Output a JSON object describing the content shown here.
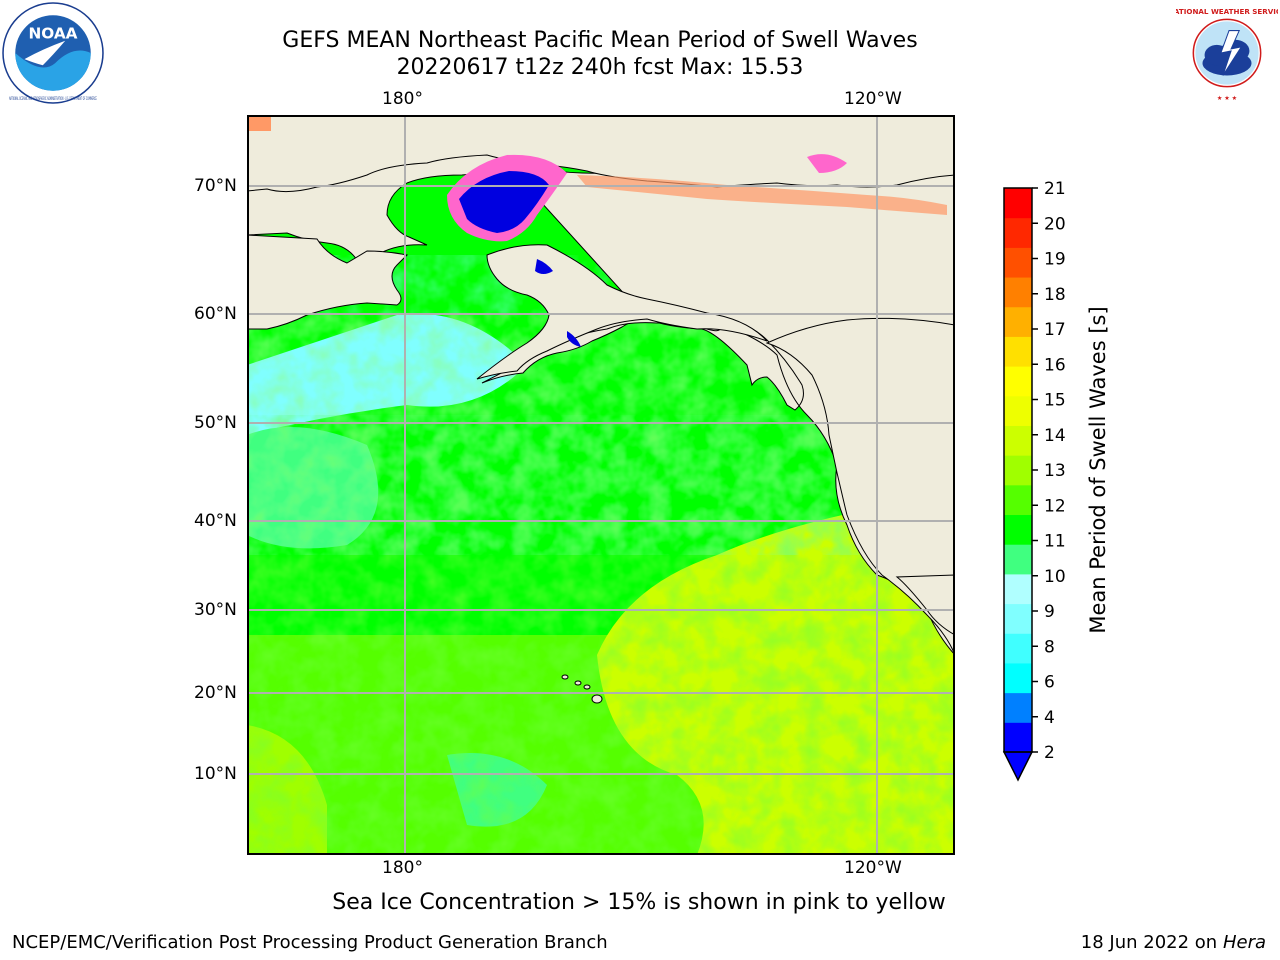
{
  "header": {
    "title_line1": "GEFS MEAN Northeast Pacific Mean Period of Swell Waves",
    "title_line2": "20220617 t12z 240h fcst   Max: 15.53"
  },
  "logos": {
    "left": {
      "name": "NOAA",
      "text": "NOAA",
      "ring_text": "NATIONAL OCEANIC AND ATMOSPHERIC ADMINISTRATION · U.S. DEPARTMENT OF COMMERCE"
    },
    "right": {
      "name": "National Weather Service",
      "ring_text": "NATIONAL WEATHER SERVICE"
    }
  },
  "map": {
    "lon_labels_top": [
      "180°",
      "120°W"
    ],
    "lon_labels_bottom": [
      "180°",
      "120°W"
    ],
    "lat_labels": [
      "70°N",
      "60°N",
      "50°N",
      "40°N",
      "30°N",
      "20°N",
      "10°N"
    ],
    "land_color": "#efecdc",
    "grid_color": "#b0b0b0"
  },
  "colorbar": {
    "title": "Mean Period of Swell Waves [s]",
    "ticks": [
      "21",
      "20",
      "19",
      "18",
      "17",
      "16",
      "15",
      "14",
      "13",
      "12",
      "11",
      "10",
      "9",
      "8",
      "6",
      "4",
      "2"
    ],
    "colors_bottom_to_top": [
      "#0000ff",
      "#0080ff",
      "#00ffff",
      "#40ffff",
      "#80ffff",
      "#b0ffff",
      "#40ff80",
      "#00ff00",
      "#55ff00",
      "#a0ff00",
      "#ccff00",
      "#eeff00",
      "#ffff00",
      "#ffe000",
      "#ffb000",
      "#ff8000",
      "#ff5000",
      "#ff2800",
      "#ff0000"
    ],
    "extend": "min"
  },
  "footnote": "Sea Ice Concentration > 15% is shown in pink to yellow",
  "footer": {
    "left": "NCEP/EMC/Verification Post Processing Product Generation Branch",
    "right_date": "18 Jun 2022 on",
    "right_machine": "Hera"
  }
}
